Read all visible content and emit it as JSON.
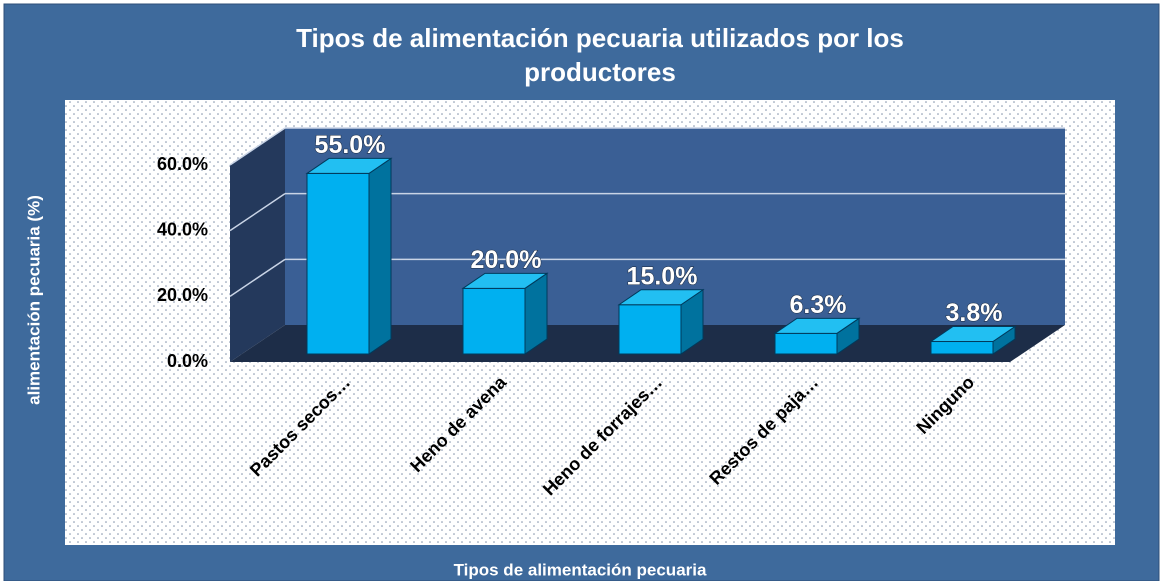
{
  "chart_data": {
    "type": "bar",
    "title": "Tipos de alimentación pecuaria utilizados por los productores",
    "x_label": "Tipos de alimentación pecuaria",
    "y_label": "alimentación pecuaria (%)",
    "categories": [
      "Pastos secos…",
      "Heno de avena",
      "Heno de forrajes…",
      "Restos de paja…",
      "Ninguno"
    ],
    "values": [
      55,
      20,
      15,
      6.3,
      3.8
    ],
    "value_labels": [
      "55.0%",
      "20.0%",
      "15.0%",
      "6.3%",
      "3.8%"
    ],
    "color": "#00b0f0",
    "ylim": [
      0,
      60
    ],
    "yticks": [
      {
        "value": 0,
        "label": "0.0%"
      },
      {
        "value": 20,
        "label": "20.0%"
      },
      {
        "value": 40,
        "label": "40.0%"
      },
      {
        "value": 60,
        "label": "60.0%"
      }
    ],
    "grid": true
  }
}
